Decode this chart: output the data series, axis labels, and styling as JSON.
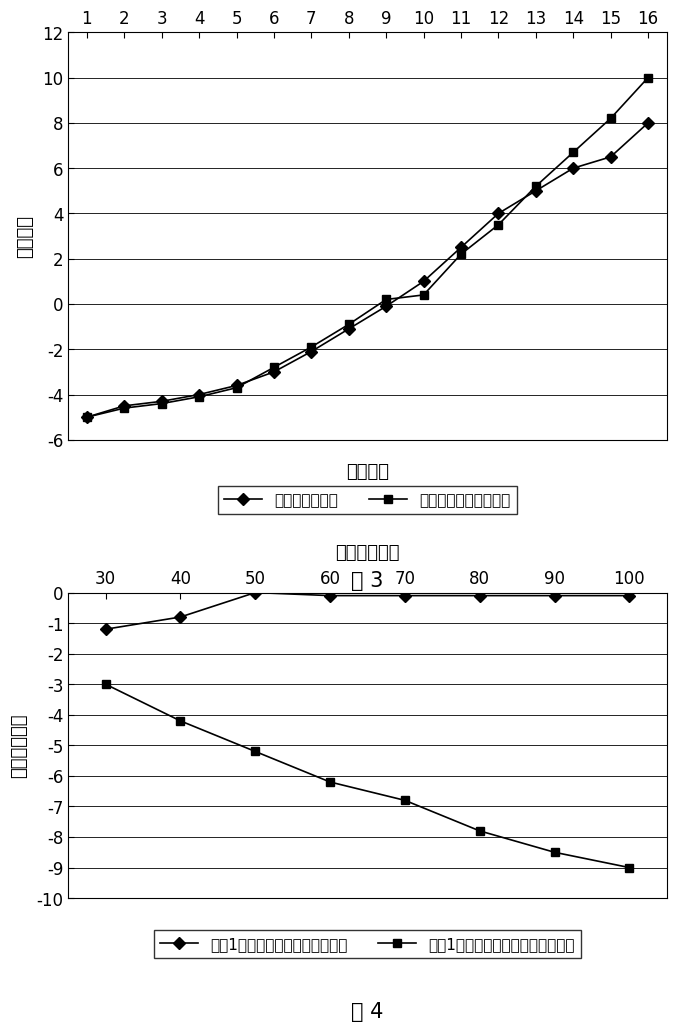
{
  "fig3": {
    "x": [
      1,
      2,
      3,
      4,
      5,
      6,
      7,
      8,
      9,
      10,
      11,
      12,
      13,
      14,
      15,
      16
    ],
    "line1_y": [
      -5.0,
      -4.5,
      -4.3,
      -4.0,
      -3.6,
      -3.0,
      -2.1,
      -1.1,
      -0.1,
      1.0,
      2.5,
      4.0,
      5.0,
      6.0,
      6.5,
      8.0
    ],
    "line2_y": [
      -5.0,
      -4.6,
      -4.4,
      -4.1,
      -3.7,
      -2.8,
      -1.9,
      -0.9,
      0.2,
      0.4,
      2.2,
      3.5,
      5.2,
      6.7,
      8.2,
      10.0
    ],
    "ylim": [
      -6,
      12
    ],
    "xlim": [
      0.5,
      16.5
    ],
    "yticks": [
      -6,
      -4,
      -2,
      0,
      2,
      4,
      6,
      8,
      10,
      12
    ],
    "xticks": [
      1,
      2,
      3,
      4,
      5,
      6,
      7,
      8,
      9,
      10,
      11,
      12,
      13,
      14,
      15,
      16
    ]
  },
  "fig4": {
    "x": [
      30,
      40,
      50,
      60,
      70,
      80,
      90,
      100
    ],
    "line1_y": [
      -1.2,
      -0.8,
      0.0,
      -0.1,
      -0.1,
      -0.1,
      -0.1,
      -0.1
    ],
    "line2_y": [
      -3.0,
      -4.2,
      -5.2,
      -6.2,
      -6.8,
      -7.8,
      -8.5,
      -9.0
    ],
    "ylim": [
      -10,
      0
    ],
    "xlim": [
      25,
      105
    ],
    "yticks": [
      -10,
      -9,
      -8,
      -7,
      -6,
      -5,
      -4,
      -3,
      -2,
      -1,
      0
    ],
    "xticks": [
      30,
      40,
      50,
      60,
      70,
      80,
      90,
      100
    ]
  },
  "bg_color": "#ffffff",
  "line_color": "#000000"
}
